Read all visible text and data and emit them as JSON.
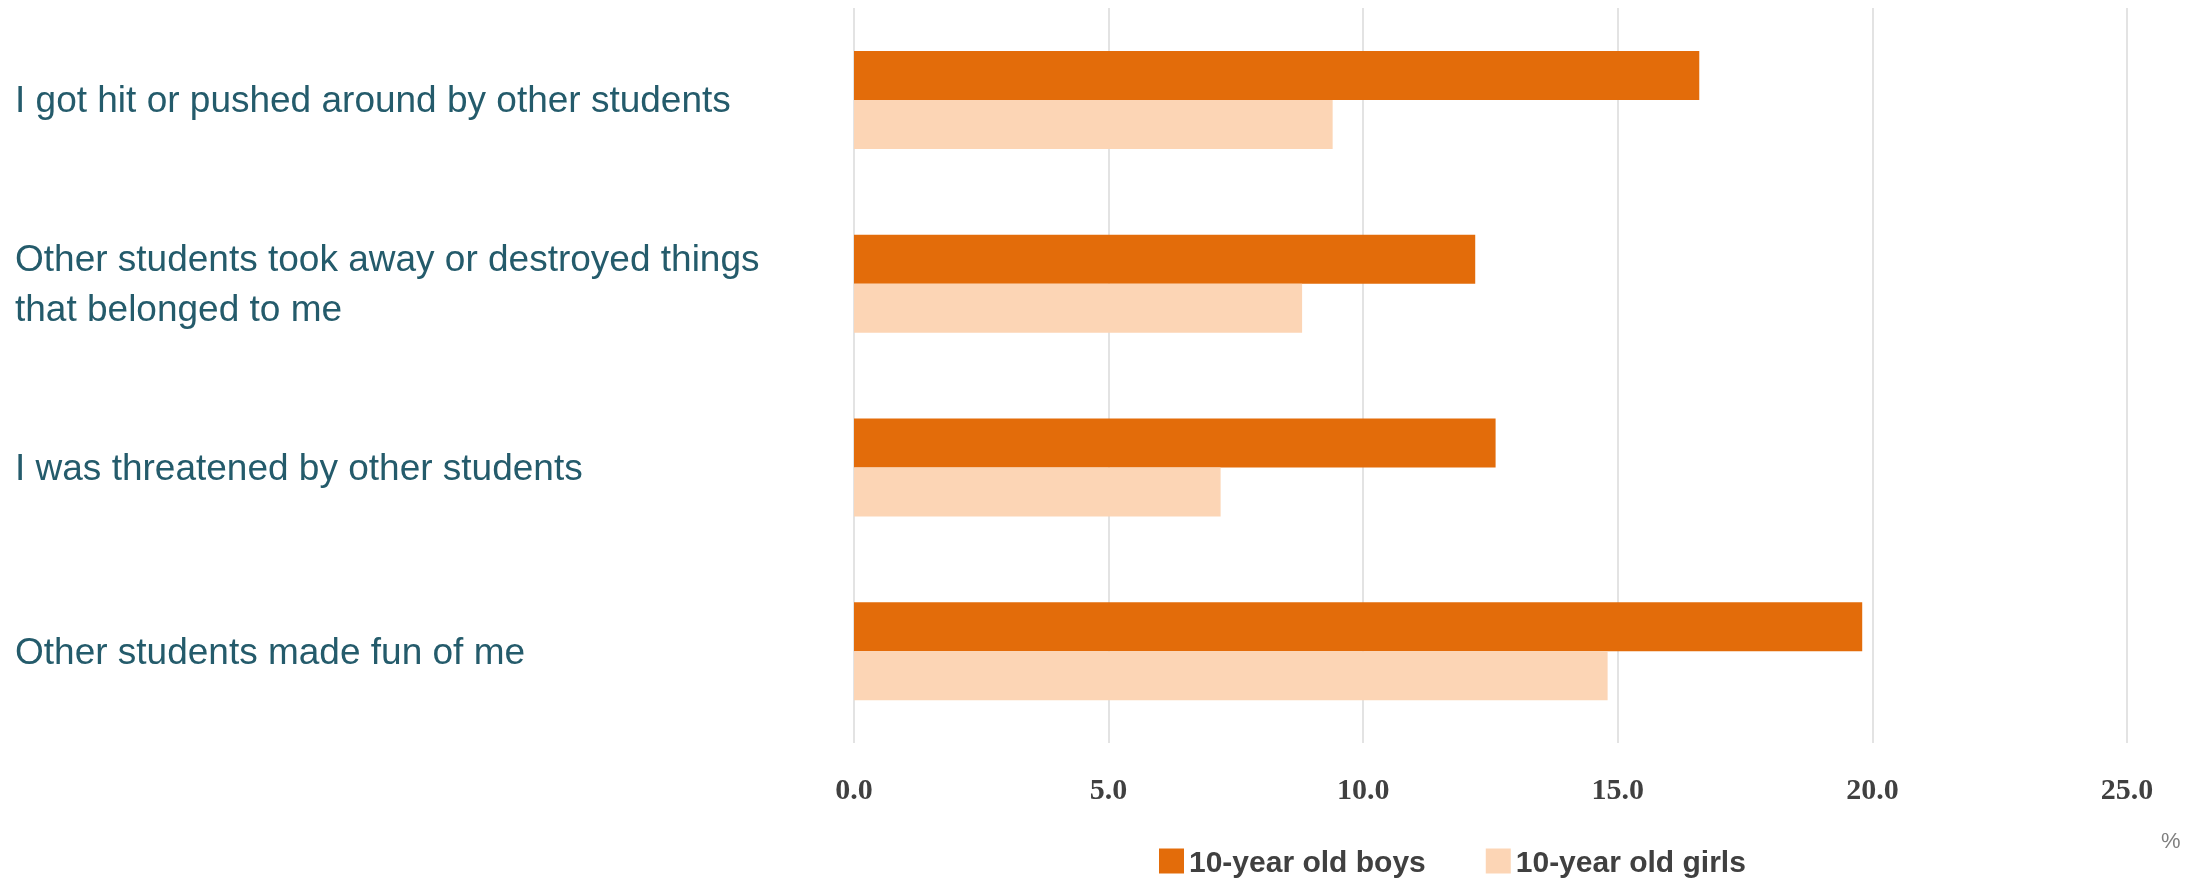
{
  "chart_data": {
    "type": "bar",
    "orientation": "horizontal",
    "categories": [
      "I got hit or pushed around by other students",
      "Other students took away or destroyed things that belonged to me",
      "I was threatened by other students",
      "Other students made fun of me"
    ],
    "series": [
      {
        "name": "10-year old boys",
        "color": "#e36c0a",
        "values": [
          16.6,
          12.2,
          12.6,
          19.8
        ]
      },
      {
        "name": "10-year old girls",
        "color": "#fcd5b5",
        "values": [
          9.4,
          8.8,
          7.2,
          14.8
        ]
      }
    ],
    "xlabel": "%",
    "xlim": [
      0,
      25
    ],
    "xticks": [
      {
        "value": 0,
        "label": "0.0"
      },
      {
        "value": 5,
        "label": "5.0"
      },
      {
        "value": 10,
        "label": "10.0"
      },
      {
        "value": 15,
        "label": "15.0"
      },
      {
        "value": 20,
        "label": "20.0"
      },
      {
        "value": 25,
        "label": "25.0"
      }
    ],
    "grid": "x",
    "legend": "bottom"
  }
}
